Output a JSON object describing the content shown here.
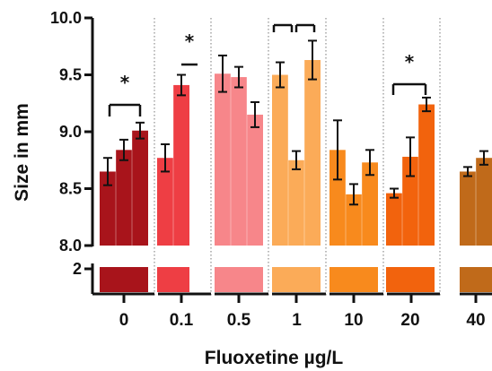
{
  "chart_data": {
    "type": "bar",
    "xlabel": "Fluoxetine µg/L",
    "ylabel": "Size in mm",
    "ylim": [
      8.0,
      10.0
    ],
    "yticks": [
      "8.0",
      "8.5",
      "9.0",
      "9.5",
      "10.0"
    ],
    "broken_axis_tick": "2",
    "error_bars": true,
    "groups": [
      {
        "label": "0",
        "color": "#A8141B",
        "bars": [
          {
            "value": 8.65,
            "err": 0.12
          },
          {
            "value": 8.84,
            "err": 0.09
          },
          {
            "value": 9.01,
            "err": 0.07
          }
        ]
      },
      {
        "label": "0.1",
        "color": "#EE3E44",
        "bars": [
          {
            "value": 8.77,
            "err": 0.12
          },
          {
            "value": 9.41,
            "err": 0.09
          }
        ]
      },
      {
        "label": "0.5",
        "color": "#F7868A",
        "bars": [
          {
            "value": 9.51,
            "err": 0.16
          },
          {
            "value": 9.48,
            "err": 0.09
          },
          {
            "value": 9.15,
            "err": 0.11
          }
        ]
      },
      {
        "label": "1",
        "color": "#FBAB58",
        "bars": [
          {
            "value": 9.5,
            "err": 0.11
          },
          {
            "value": 8.75,
            "err": 0.08
          },
          {
            "value": 9.63,
            "err": 0.17
          }
        ]
      },
      {
        "label": "10",
        "color": "#F88A1D",
        "bars": [
          {
            "value": 8.84,
            "err": 0.26
          },
          {
            "value": 8.45,
            "err": 0.09
          },
          {
            "value": 8.73,
            "err": 0.11
          }
        ]
      },
      {
        "label": "20",
        "color": "#F2630D",
        "bars": [
          {
            "value": 8.46,
            "err": 0.04
          },
          {
            "value": 8.78,
            "err": 0.17
          },
          {
            "value": 9.24,
            "err": 0.06
          }
        ]
      },
      {
        "label": "40",
        "color": "#C06A1A",
        "bars": [
          {
            "value": 8.65,
            "err": 0.04
          },
          {
            "value": 8.77,
            "err": 0.06
          }
        ]
      }
    ],
    "significance": [
      {
        "group": "0",
        "symbol": "*"
      },
      {
        "group": "0.1",
        "symbol": "*"
      },
      {
        "group": "1",
        "symbol": ""
      },
      {
        "group": "20",
        "symbol": "*"
      }
    ]
  }
}
